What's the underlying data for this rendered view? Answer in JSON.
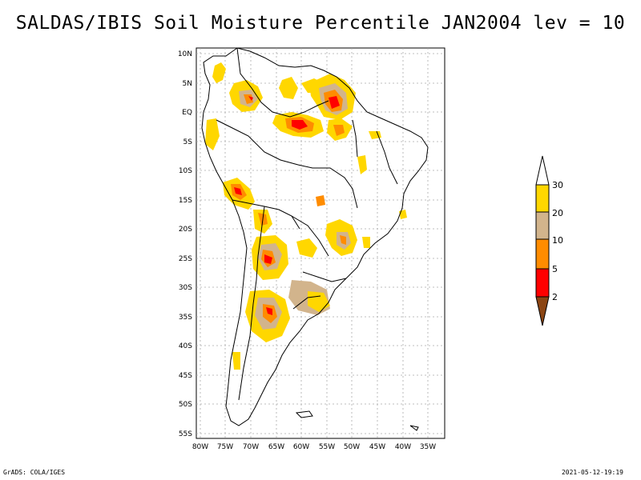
{
  "title": "SALDAS/IBIS Soil Moisture Percentile JAN2004 lev = 10",
  "footer": {
    "left": "GrADS: COLA/IGES",
    "right": "2021-05-12-19:19"
  },
  "map": {
    "lat_labels": [
      "10N",
      "5N",
      "EQ",
      "5S",
      "10S",
      "15S",
      "20S",
      "25S",
      "30S",
      "35S",
      "40S",
      "45S",
      "50S",
      "55S"
    ],
    "lon_labels": [
      "80W",
      "75W",
      "70W",
      "65W",
      "60W",
      "55W",
      "50W",
      "45W",
      "40W",
      "35W"
    ],
    "lat_range": [
      -56,
      11
    ],
    "lon_range": [
      -81,
      -33
    ],
    "grid": true
  },
  "colorbar": {
    "labels": [
      "2",
      "5",
      "10",
      "20",
      "30"
    ],
    "colors": {
      "below2": "#8b4513",
      "2_5": "#ff0000",
      "5_10": "#ff8c00",
      "10_20": "#d2b48c",
      "20_30": "#ffd700",
      "above30": "#ffffff"
    }
  },
  "colors": {
    "coastline": "#000000",
    "grid": "#999999"
  }
}
